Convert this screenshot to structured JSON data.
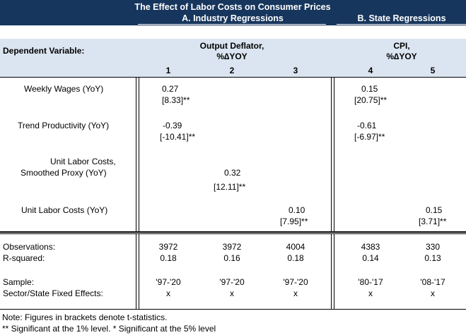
{
  "header": {
    "title": "The Effect of Labor Costs on Consumer Prices",
    "panel_a": "A.  Industry Regressions",
    "panel_b": "B.  State Regressions",
    "dep_var_label": "Dependent Variable:",
    "dep_a_line1": "Output Deflator,",
    "dep_a_line2": "%∆YOY",
    "dep_b_line1": "CPI,",
    "dep_b_line2": "%∆YOY",
    "col_nums": [
      "1",
      "2",
      "3",
      "4",
      "5"
    ]
  },
  "rows": {
    "weekly_wages": {
      "label": "Weekly Wages (YoY)",
      "c1_coef": "0.27",
      "c1_t": "[8.33]**",
      "c4_coef": "0.15",
      "c4_t": "[20.75]**"
    },
    "trend_productivity": {
      "label": "Trend Productivity (YoY)",
      "c1_coef": "-0.39",
      "c1_t": "[-10.41]**",
      "c4_coef": "-0.61",
      "c4_t": "[-6.97]**"
    },
    "ulc_smoothed": {
      "label_line1": "Unit Labor Costs,",
      "label_line2": "Smoothed Proxy (YoY)",
      "c2_coef": "0.32",
      "c2_t": "[12.11]**"
    },
    "ulc": {
      "label": "Unit Labor Costs (YoY)",
      "c3_coef": "0.10",
      "c3_t": "[7.95]**",
      "c5_coef": "0.15",
      "c5_t": "[3.71]**"
    }
  },
  "stats": {
    "observations_label": "Observations:",
    "observations": [
      "3972",
      "3972",
      "4004",
      "4383",
      "330"
    ],
    "rsquared_label": "R-squared:",
    "rsquared": [
      "0.18",
      "0.16",
      "0.18",
      "0.14",
      "0.13"
    ],
    "sample_label": "Sample:",
    "sample": [
      "'97-'20",
      "'97-'20",
      "'97-'20",
      "'80-'17",
      "'08-'17"
    ],
    "fe_label": "Sector/State Fixed Effects:",
    "fe": [
      "x",
      "x",
      "x",
      "x",
      "x"
    ]
  },
  "notes": {
    "note1": "Note: Figures in brackets denote t-statistics.",
    "note2": "** Significant at the 1% level. * Significant at the 5% level"
  },
  "colors": {
    "title_band": "#17365d",
    "header_band": "#dbe5f1"
  }
}
